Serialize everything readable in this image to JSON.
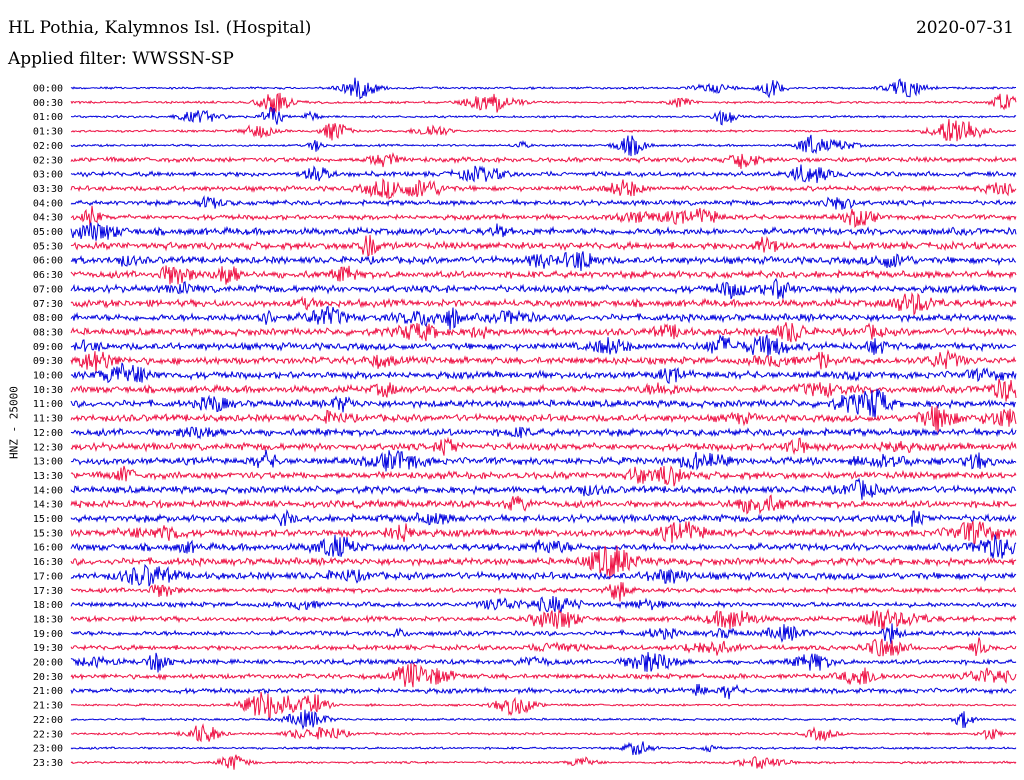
{
  "header": {
    "title": "HL Pothia, Kalymnos Isl. (Hospital)",
    "filter": "Applied filter: WWSSN-SP",
    "date": "2020-07-31"
  },
  "chart_data": {
    "type": "line",
    "ylabel": "HNZ - 25000",
    "colors": [
      "#0000dd",
      "#ee1144"
    ],
    "rows": [
      "00:00",
      "00:30",
      "01:00",
      "01:30",
      "02:00",
      "02:30",
      "03:00",
      "03:30",
      "04:00",
      "04:30",
      "05:00",
      "05:30",
      "06:00",
      "06:30",
      "07:00",
      "07:30",
      "08:00",
      "08:30",
      "09:00",
      "09:30",
      "10:00",
      "10:30",
      "11:00",
      "11:30",
      "12:00",
      "12:30",
      "13:00",
      "13:30",
      "14:00",
      "14:30",
      "15:00",
      "15:30",
      "16:00",
      "16:30",
      "17:00",
      "17:30",
      "18:00",
      "18:30",
      "19:00",
      "19:30",
      "20:00",
      "20:30",
      "21:00",
      "21:30",
      "22:00",
      "22:30",
      "23:00",
      "23:30"
    ]
  }
}
